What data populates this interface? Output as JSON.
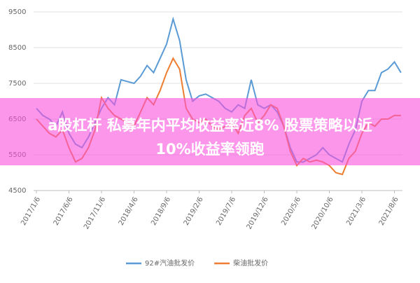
{
  "chart_data": {
    "type": "line",
    "categories": [
      "2017/1/6",
      null,
      null,
      null,
      null,
      "2017/6/6",
      null,
      null,
      null,
      null,
      "2017/11/6",
      null,
      null,
      null,
      null,
      "2018/4/6",
      null,
      null,
      null,
      null,
      "2018/9/6",
      null,
      null,
      null,
      null,
      "2019/2/6",
      null,
      null,
      null,
      null,
      "2019/7/6",
      null,
      null,
      null,
      null,
      "2019/12/6",
      null,
      null,
      null,
      null,
      "2020/5/6",
      null,
      null,
      null,
      null,
      "2020/10/6",
      null,
      null,
      null,
      null,
      "2021/3/6",
      null,
      null,
      null,
      null,
      "2021/8/6",
      null
    ],
    "series": [
      {
        "name": "92#汽油批发价",
        "color": "#5b9bd5",
        "values": [
          6800,
          6600,
          6500,
          6300,
          6700,
          6100,
          5800,
          5700,
          6000,
          6400,
          6800,
          7100,
          6900,
          7600,
          7550,
          7500,
          7700,
          8000,
          7800,
          8200,
          8600,
          9300,
          8700,
          7600,
          7000,
          7150,
          7200,
          7100,
          7000,
          6800,
          6700,
          6900,
          6800,
          7600,
          6900,
          6800,
          6900,
          6700,
          6300,
          5700,
          5300,
          5300,
          5400,
          5500,
          5700,
          5500,
          5400,
          5300,
          5800,
          6200,
          7000,
          7300,
          7300,
          7800,
          7900,
          8100,
          7800
        ]
      },
      {
        "name": "柴油批发价",
        "color": "#ed7d31",
        "values": [
          6500,
          6300,
          6100,
          6000,
          6200,
          5700,
          5300,
          5400,
          5700,
          6200,
          7100,
          6800,
          6600,
          6500,
          6400,
          6300,
          6700,
          7100,
          6900,
          7300,
          7800,
          8200,
          7900,
          6800,
          6500,
          6400,
          6500,
          6300,
          6200,
          6300,
          6400,
          6100,
          6600,
          6800,
          6400,
          6600,
          6900,
          6800,
          6300,
          5600,
          5200,
          5400,
          5300,
          5350,
          5300,
          5200,
          5000,
          4950,
          5400,
          5600,
          6100,
          6400,
          6300,
          6500,
          6500,
          6600,
          6600
        ]
      }
    ],
    "ylim": [
      4500,
      9500
    ],
    "yticks": [
      4500,
      5500,
      6500,
      7500,
      8500,
      9500
    ],
    "grid": true,
    "legend": "bottom"
  },
  "overlay": {
    "lines": [
      "a股杠杆 私募年内平均收益率近8% 股票策略以近",
      "10%收益率领跑"
    ]
  }
}
